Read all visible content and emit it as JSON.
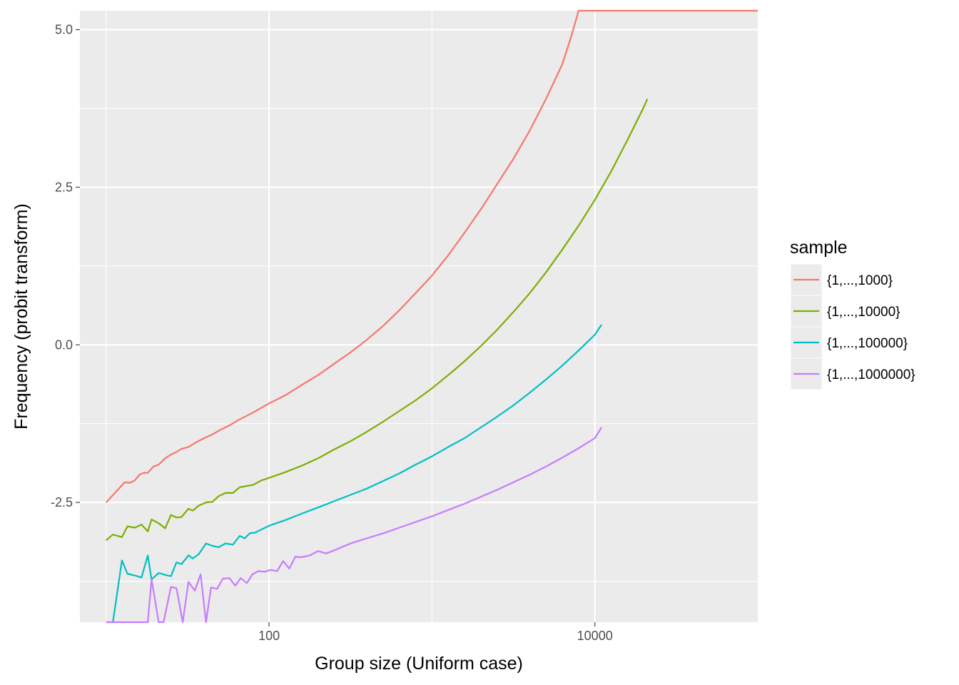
{
  "chart_data": {
    "type": "line",
    "title": "",
    "xlabel": "Group size (Uniform case)",
    "ylabel": "Frequency (probit transform)",
    "x_scale": "log10",
    "xlim": [
      6.9,
      100000
    ],
    "ylim": [
      -4.4,
      5.3
    ],
    "x_ticks": [
      {
        "value": 100,
        "label": "100"
      },
      {
        "value": 10000,
        "label": "10000"
      }
    ],
    "y_ticks": [
      {
        "value": -2.5,
        "label": "-2.5"
      },
      {
        "value": 0,
        "label": "0.0"
      },
      {
        "value": 2.5,
        "label": "2.5"
      },
      {
        "value": 5,
        "label": "5.0"
      }
    ],
    "grid": true,
    "legend": {
      "title": "sample",
      "position": "right"
    },
    "series": [
      {
        "name": "{1,...,1000}",
        "color": "#F8766D",
        "points": [
          [
            10,
            -2.5
          ],
          [
            13,
            -2.18
          ],
          [
            14,
            -2.19
          ],
          [
            15,
            -2.15
          ],
          [
            16,
            -2.06
          ],
          [
            17,
            -2.03
          ],
          [
            18,
            -2.03
          ],
          [
            19.5,
            -1.93
          ],
          [
            21,
            -1.9
          ],
          [
            23,
            -1.8
          ],
          [
            25,
            -1.74
          ],
          [
            27,
            -1.7
          ],
          [
            29,
            -1.65
          ],
          [
            32,
            -1.62
          ],
          [
            36,
            -1.54
          ],
          [
            40,
            -1.48
          ],
          [
            45,
            -1.42
          ],
          [
            51,
            -1.34
          ],
          [
            57,
            -1.28
          ],
          [
            64,
            -1.2
          ],
          [
            79,
            -1.08
          ],
          [
            100,
            -0.93
          ],
          [
            126,
            -0.8
          ],
          [
            158,
            -0.64
          ],
          [
            200,
            -0.48
          ],
          [
            251,
            -0.3
          ],
          [
            316,
            -0.12
          ],
          [
            398,
            0.08
          ],
          [
            501,
            0.3
          ],
          [
            631,
            0.55
          ],
          [
            794,
            0.82
          ],
          [
            1000,
            1.1
          ],
          [
            1259,
            1.42
          ],
          [
            1585,
            1.78
          ],
          [
            1995,
            2.15
          ],
          [
            2512,
            2.55
          ],
          [
            3162,
            2.95
          ],
          [
            3981,
            3.4
          ],
          [
            5012,
            3.9
          ],
          [
            6310,
            4.45
          ],
          [
            7079,
            4.85
          ],
          [
            7943,
            5.3
          ],
          [
            100000,
            5.3
          ]
        ]
      },
      {
        "name": "{1,...,10000}",
        "color": "#7CAE00",
        "points": [
          [
            10,
            -3.1
          ],
          [
            11,
            -3.01
          ],
          [
            12.5,
            -3.05
          ],
          [
            13.5,
            -2.88
          ],
          [
            15,
            -2.9
          ],
          [
            16.5,
            -2.85
          ],
          [
            18,
            -2.96
          ],
          [
            19,
            -2.77
          ],
          [
            21,
            -2.83
          ],
          [
            23,
            -2.91
          ],
          [
            25,
            -2.7
          ],
          [
            27,
            -2.74
          ],
          [
            29,
            -2.73
          ],
          [
            32,
            -2.6
          ],
          [
            34,
            -2.63
          ],
          [
            37,
            -2.55
          ],
          [
            41,
            -2.5
          ],
          [
            45,
            -2.49
          ],
          [
            49,
            -2.4
          ],
          [
            54,
            -2.35
          ],
          [
            60,
            -2.35
          ],
          [
            66,
            -2.26
          ],
          [
            80,
            -2.22
          ],
          [
            90,
            -2.15
          ],
          [
            100,
            -2.11
          ],
          [
            126,
            -2.02
          ],
          [
            158,
            -1.92
          ],
          [
            200,
            -1.8
          ],
          [
            251,
            -1.66
          ],
          [
            316,
            -1.53
          ],
          [
            398,
            -1.38
          ],
          [
            501,
            -1.22
          ],
          [
            631,
            -1.05
          ],
          [
            794,
            -0.88
          ],
          [
            1000,
            -0.69
          ],
          [
            1259,
            -0.48
          ],
          [
            1585,
            -0.26
          ],
          [
            1995,
            -0.02
          ],
          [
            2512,
            0.24
          ],
          [
            3162,
            0.52
          ],
          [
            3981,
            0.82
          ],
          [
            5012,
            1.15
          ],
          [
            6310,
            1.51
          ],
          [
            7943,
            1.89
          ],
          [
            10000,
            2.3
          ],
          [
            12589,
            2.75
          ],
          [
            15849,
            3.25
          ],
          [
            19953,
            3.77
          ],
          [
            21000,
            3.9
          ]
        ]
      },
      {
        "name": "{1,...,100000}",
        "color": "#00BFC4",
        "points": [
          [
            10,
            -4.4
          ],
          [
            11,
            -4.4
          ],
          [
            12.5,
            -3.42
          ],
          [
            13.5,
            -3.63
          ],
          [
            15,
            -3.66
          ],
          [
            16.5,
            -3.69
          ],
          [
            18,
            -3.34
          ],
          [
            19,
            -3.72
          ],
          [
            21,
            -3.62
          ],
          [
            23,
            -3.65
          ],
          [
            25,
            -3.67
          ],
          [
            27,
            -3.45
          ],
          [
            29,
            -3.48
          ],
          [
            32,
            -3.34
          ],
          [
            34,
            -3.39
          ],
          [
            37,
            -3.32
          ],
          [
            41,
            -3.15
          ],
          [
            45,
            -3.19
          ],
          [
            49,
            -3.21
          ],
          [
            54,
            -3.15
          ],
          [
            60,
            -3.17
          ],
          [
            66,
            -3.03
          ],
          [
            71,
            -3.07
          ],
          [
            76,
            -2.99
          ],
          [
            82,
            -2.98
          ],
          [
            100,
            -2.87
          ],
          [
            126,
            -2.78
          ],
          [
            158,
            -2.68
          ],
          [
            200,
            -2.58
          ],
          [
            251,
            -2.48
          ],
          [
            316,
            -2.38
          ],
          [
            398,
            -2.28
          ],
          [
            501,
            -2.16
          ],
          [
            631,
            -2.04
          ],
          [
            794,
            -1.9
          ],
          [
            1000,
            -1.77
          ],
          [
            1259,
            -1.62
          ],
          [
            1585,
            -1.48
          ],
          [
            1995,
            -1.31
          ],
          [
            2512,
            -1.14
          ],
          [
            3162,
            -0.96
          ],
          [
            3981,
            -0.76
          ],
          [
            5012,
            -0.55
          ],
          [
            6310,
            -0.33
          ],
          [
            7943,
            -0.09
          ],
          [
            10000,
            0.16
          ],
          [
            11000,
            0.32
          ]
        ]
      },
      {
        "name": "{1,...,1000000}",
        "color": "#C77CFF",
        "points": [
          [
            10,
            -4.4
          ],
          [
            18,
            -4.4
          ],
          [
            19,
            -3.72
          ],
          [
            21,
            -4.4
          ],
          [
            22.5,
            -4.4
          ],
          [
            25,
            -3.84
          ],
          [
            27,
            -3.86
          ],
          [
            29.5,
            -4.4
          ],
          [
            32,
            -3.76
          ],
          [
            35,
            -3.9
          ],
          [
            38,
            -3.64
          ],
          [
            41,
            -4.4
          ],
          [
            44,
            -3.85
          ],
          [
            48,
            -3.87
          ],
          [
            52,
            -3.71
          ],
          [
            57,
            -3.7
          ],
          [
            62,
            -3.82
          ],
          [
            67,
            -3.7
          ],
          [
            73,
            -3.78
          ],
          [
            79,
            -3.64
          ],
          [
            86,
            -3.59
          ],
          [
            94,
            -3.6
          ],
          [
            102,
            -3.57
          ],
          [
            112,
            -3.59
          ],
          [
            122,
            -3.43
          ],
          [
            133,
            -3.55
          ],
          [
            145,
            -3.36
          ],
          [
            158,
            -3.37
          ],
          [
            178,
            -3.34
          ],
          [
            200,
            -3.27
          ],
          [
            224,
            -3.31
          ],
          [
            251,
            -3.26
          ],
          [
            316,
            -3.15
          ],
          [
            398,
            -3.07
          ],
          [
            501,
            -2.99
          ],
          [
            631,
            -2.9
          ],
          [
            794,
            -2.81
          ],
          [
            1000,
            -2.72
          ],
          [
            1259,
            -2.62
          ],
          [
            1585,
            -2.52
          ],
          [
            1995,
            -2.41
          ],
          [
            2512,
            -2.3
          ],
          [
            3162,
            -2.18
          ],
          [
            3981,
            -2.06
          ],
          [
            5012,
            -1.93
          ],
          [
            6310,
            -1.79
          ],
          [
            7943,
            -1.64
          ],
          [
            10000,
            -1.48
          ],
          [
            11000,
            -1.31
          ]
        ]
      }
    ]
  }
}
